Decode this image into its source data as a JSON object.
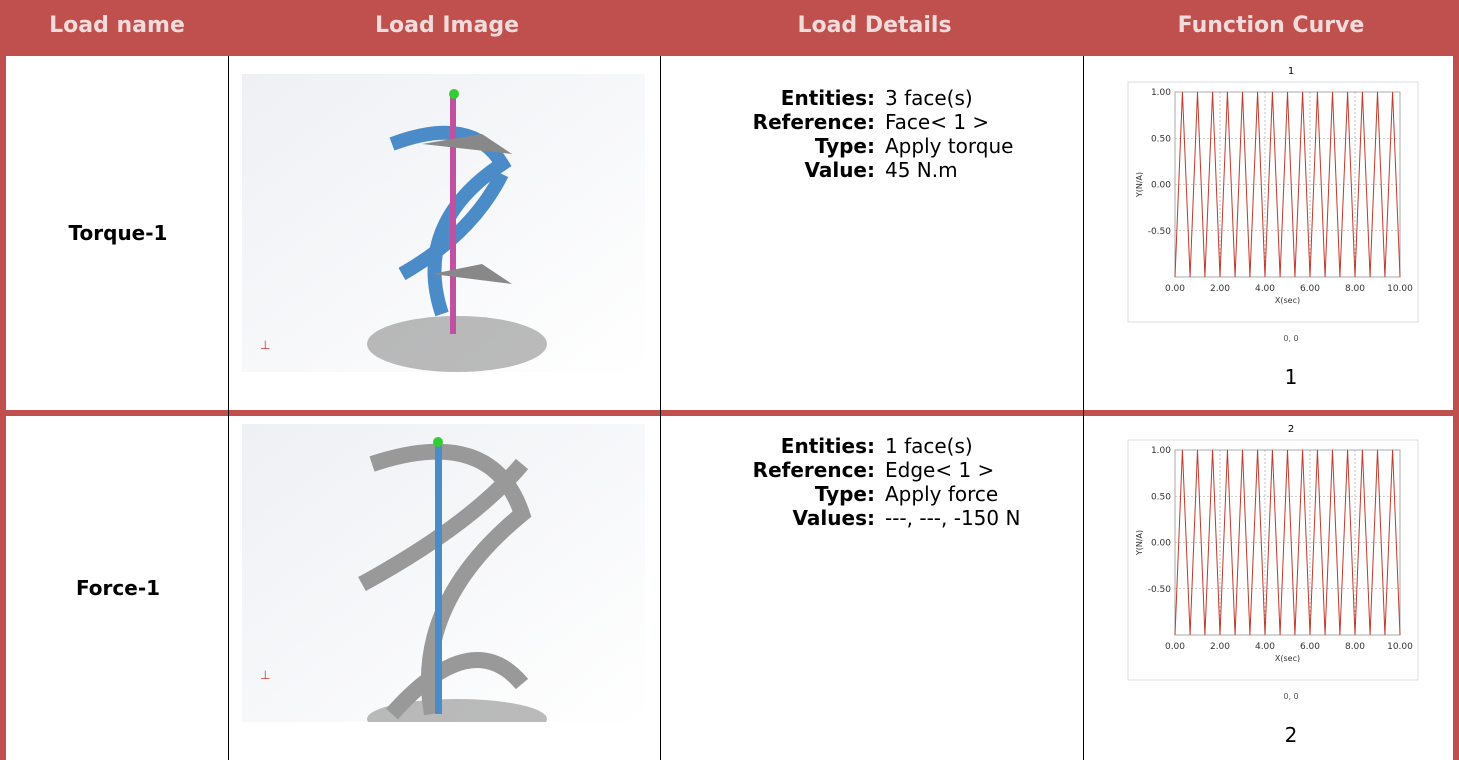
{
  "table": {
    "headers": [
      "Load name",
      "Load Image",
      "Load Details",
      "Function Curve"
    ],
    "rows": [
      {
        "name": "Torque-1",
        "details": [
          {
            "label": "Entities:",
            "value": "3 face(s)"
          },
          {
            "label": "Reference:",
            "value": "Face< 1 >"
          },
          {
            "label": "Type:",
            "value": "Apply torque"
          },
          {
            "label": "Value:",
            "value": "45 N.m"
          }
        ],
        "curve": {
          "type": "line",
          "title": "1",
          "xlabel": "X(sec)",
          "ylabel": "Y(N/A)",
          "footer": "0, 0",
          "caption": "1",
          "xlim": [
            0,
            10
          ],
          "ylim": [
            -1,
            1
          ],
          "xticks": [
            {
              "value": 0,
              "label": "0.00"
            },
            {
              "value": 2,
              "label": "2.00"
            },
            {
              "value": 4,
              "label": "4.00"
            },
            {
              "value": 6,
              "label": "6.00"
            },
            {
              "value": 8,
              "label": "8.00"
            },
            {
              "value": 10,
              "label": "10.00"
            }
          ],
          "yticks": [
            {
              "value": 1,
              "label": "1.00"
            },
            {
              "value": 0.5,
              "label": "0.50"
            },
            {
              "value": 0,
              "label": "0.00"
            },
            {
              "value": -0.5,
              "label": "-0.50"
            }
          ],
          "color": "#c0392b",
          "x": [
            0,
            0.33,
            0.67,
            1,
            1.33,
            1.67,
            2,
            2.33,
            2.67,
            3,
            3.33,
            3.67,
            4,
            4.33,
            4.67,
            5,
            5.33,
            5.67,
            6,
            6.33,
            6.67,
            7,
            7.33,
            7.67,
            8,
            8.33,
            8.67,
            9,
            9.33,
            9.67,
            10
          ],
          "values": [
            -1,
            1,
            -1,
            1,
            -1,
            1,
            -1,
            1,
            -1,
            1,
            -1,
            1,
            -1,
            1,
            -1,
            1,
            -1,
            1,
            -1,
            1,
            -1,
            1,
            -1,
            1,
            -1,
            1,
            -1,
            1,
            -1,
            1,
            -1
          ]
        }
      },
      {
        "name": "Force-1",
        "details": [
          {
            "label": "Entities:",
            "value": "1 face(s)"
          },
          {
            "label": "Reference:",
            "value": "Edge< 1 >"
          },
          {
            "label": "Type:",
            "value": "Apply force"
          },
          {
            "label": "Values:",
            "value": "---, ---, -150 N"
          }
        ],
        "curve": {
          "type": "line",
          "title": "2",
          "xlabel": "X(sec)",
          "ylabel": "Y(N/A)",
          "footer": "0, 0",
          "caption": "2",
          "xlim": [
            0,
            10
          ],
          "ylim": [
            -1,
            1
          ],
          "xticks": [
            {
              "value": 0,
              "label": "0.00"
            },
            {
              "value": 2,
              "label": "2.00"
            },
            {
              "value": 4,
              "label": "4.00"
            },
            {
              "value": 6,
              "label": "6.00"
            },
            {
              "value": 8,
              "label": "8.00"
            },
            {
              "value": 10,
              "label": "10.00"
            }
          ],
          "yticks": [
            {
              "value": 1,
              "label": "1.00"
            },
            {
              "value": 0.5,
              "label": "0.50"
            },
            {
              "value": 0,
              "label": "0.00"
            },
            {
              "value": -0.5,
              "label": "-0.50"
            }
          ],
          "color": "#c0392b",
          "x": [
            0,
            0.33,
            0.67,
            1,
            1.33,
            1.67,
            2,
            2.33,
            2.67,
            3,
            3.33,
            3.67,
            4,
            4.33,
            4.67,
            5,
            5.33,
            5.67,
            6,
            6.33,
            6.67,
            7,
            7.33,
            7.67,
            8,
            8.33,
            8.67,
            9,
            9.33,
            9.67,
            10
          ],
          "values": [
            -1,
            1,
            -1,
            1,
            -1,
            1,
            -1,
            1,
            -1,
            1,
            -1,
            1,
            -1,
            1,
            -1,
            1,
            -1,
            1,
            -1,
            1,
            -1,
            1,
            -1,
            1,
            -1,
            1,
            -1,
            1,
            -1,
            1,
            -1
          ]
        }
      }
    ]
  }
}
